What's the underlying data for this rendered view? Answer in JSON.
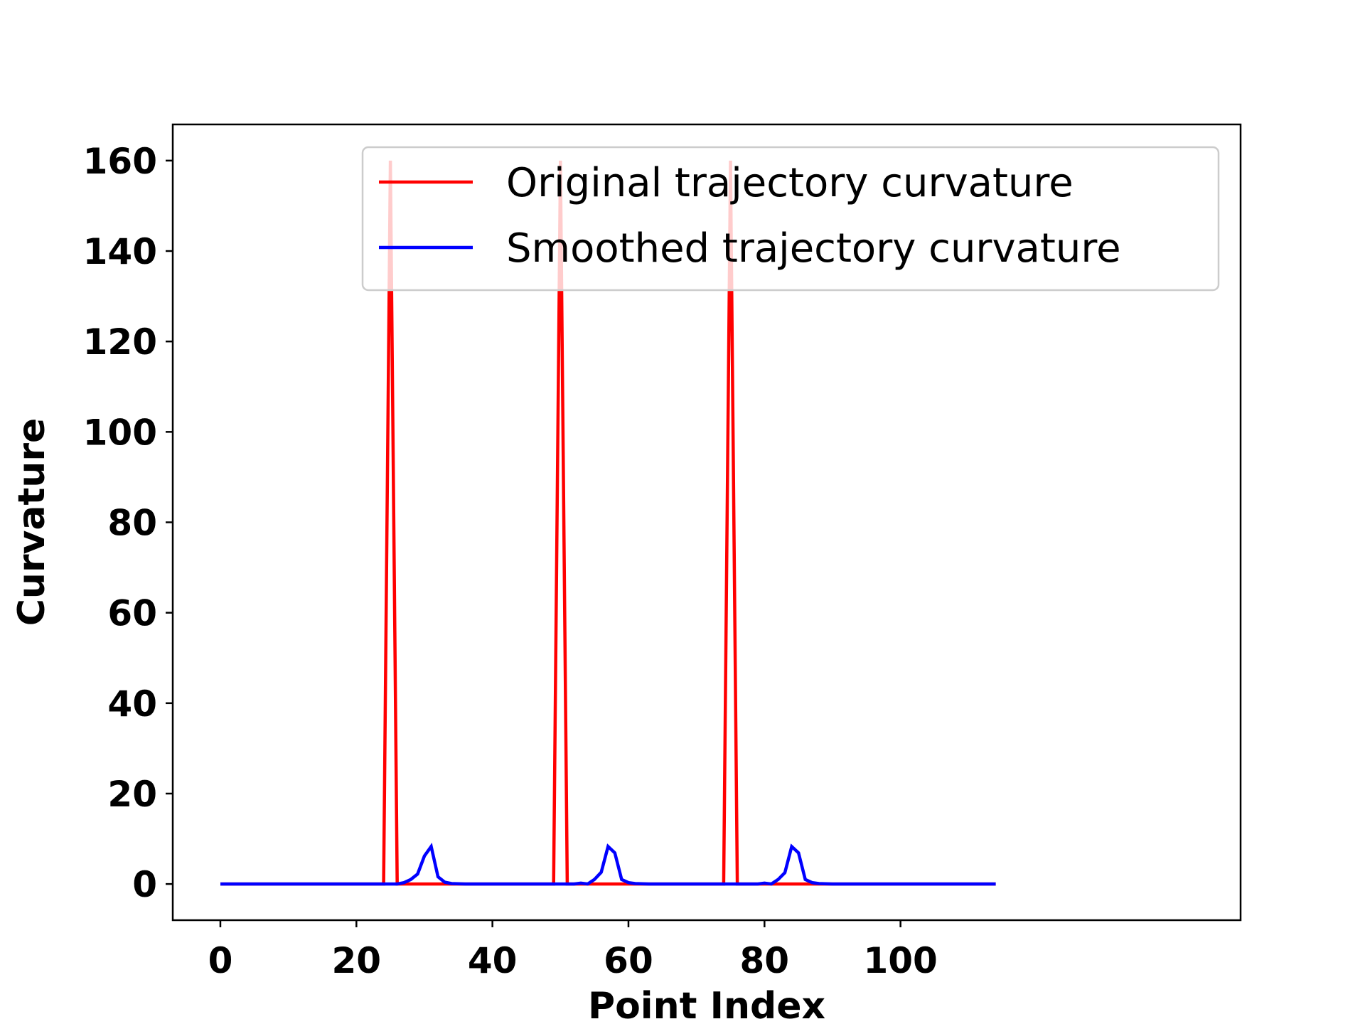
{
  "chart_data": {
    "type": "line",
    "title": "",
    "xlabel": "Point Index",
    "ylabel": "Curvature",
    "xlim": [
      -7,
      150
    ],
    "ylim": [
      -8,
      168
    ],
    "xticks": [
      0,
      20,
      40,
      60,
      80,
      100
    ],
    "yticks": [
      0,
      20,
      40,
      60,
      80,
      100,
      120,
      140,
      160
    ],
    "grid": false,
    "legend_position": "top-right",
    "series": [
      {
        "name": "Original trajectory curvature",
        "color": "#ff0000",
        "points": [
          [
            0,
            0
          ],
          [
            24,
            0
          ],
          [
            25,
            160
          ],
          [
            26,
            0
          ],
          [
            49,
            0
          ],
          [
            50,
            160
          ],
          [
            51,
            0
          ],
          [
            74,
            0
          ],
          [
            75,
            160
          ],
          [
            76,
            0
          ],
          [
            114,
            0
          ]
        ]
      },
      {
        "name": "Smoothed trajectory curvature",
        "color": "#0000ff",
        "points": [
          [
            0,
            0
          ],
          [
            26,
            0
          ],
          [
            27,
            0.3
          ],
          [
            28,
            1
          ],
          [
            29,
            2.2
          ],
          [
            30,
            6.2
          ],
          [
            31,
            8.3
          ],
          [
            32,
            1.6
          ],
          [
            33,
            0.4
          ],
          [
            34,
            0.1
          ],
          [
            36,
            0
          ],
          [
            52,
            0
          ],
          [
            53,
            0.2
          ],
          [
            54,
            0
          ],
          [
            55,
            1
          ],
          [
            56,
            2.6
          ],
          [
            57,
            8.3
          ],
          [
            58,
            6.9
          ],
          [
            59,
            1
          ],
          [
            60,
            0.3
          ],
          [
            61,
            0.1
          ],
          [
            63,
            0
          ],
          [
            79,
            0
          ],
          [
            80,
            0.2
          ],
          [
            81,
            0
          ],
          [
            82,
            1
          ],
          [
            83,
            2.5
          ],
          [
            84,
            8.3
          ],
          [
            85,
            6.9
          ],
          [
            86,
            1
          ],
          [
            87,
            0.3
          ],
          [
            88,
            0.1
          ],
          [
            90,
            0
          ],
          [
            114,
            0
          ]
        ]
      }
    ]
  }
}
